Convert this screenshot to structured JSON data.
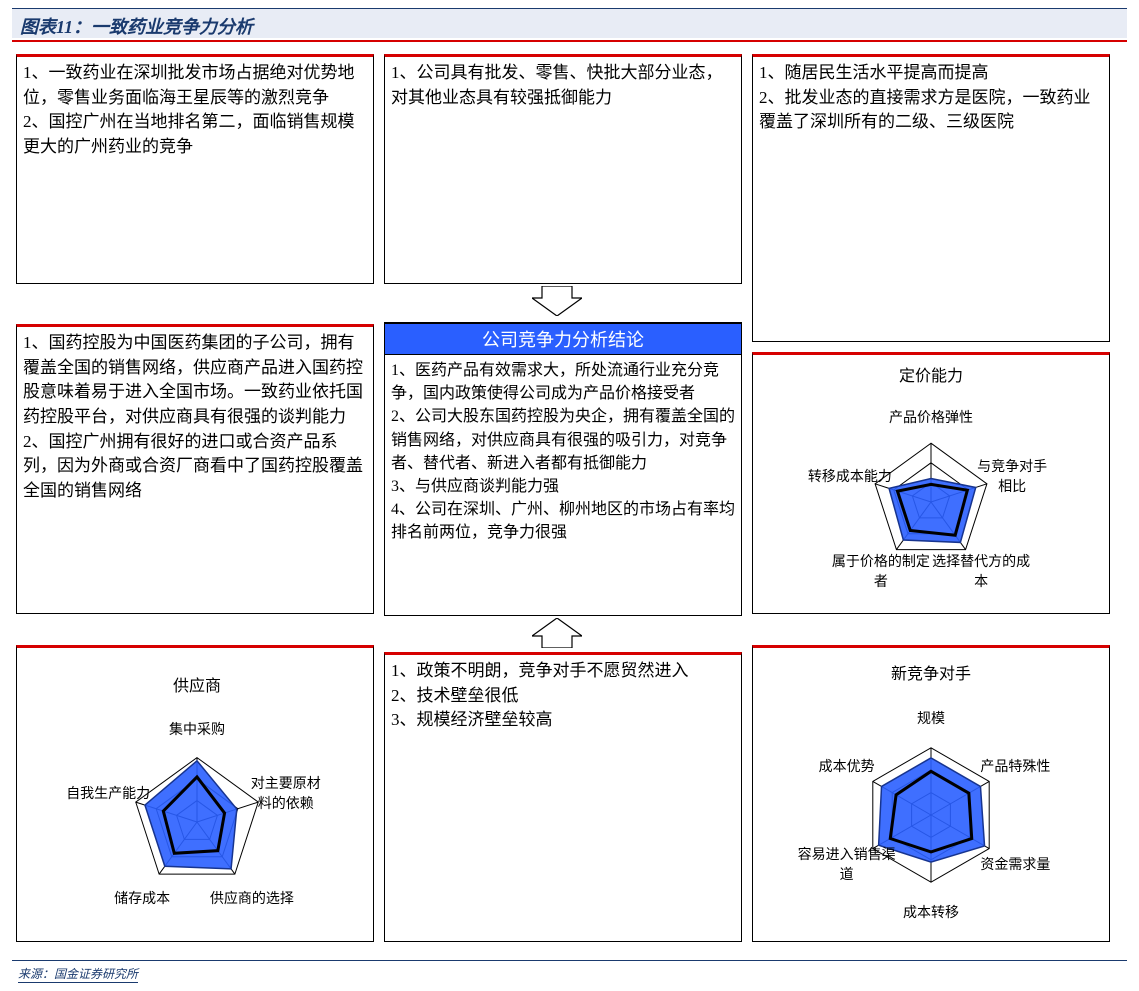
{
  "header": {
    "title": "图表11：一致药业竞争力分析"
  },
  "footer": {
    "source": "来源：国金证券研究所"
  },
  "center": {
    "title": "公司竞争力分析结论",
    "text": "1、医药产品有效需求大，所处流通行业充分竞争，国内政策使得公司成为产品价格接受者\n2、公司大股东国药控股为央企，拥有覆盖全国的销售网络，对供应商具有很强的吸引力，对竞争者、替代者、新进入者都有抵御能力\n3、与供应商谈判能力强\n4、公司在深圳、广州、柳州地区的市场占有率均排名前两位，竞争力很强"
  },
  "boxes": {
    "top_left": "1、一致药业在深圳批发市场占据绝对优势地位，零售业务面临海王星辰等的激烈竞争\n2、国控广州在当地排名第二，面临销售规模更大的广州药业的竞争",
    "top_mid": "1、公司具有批发、零售、快批大部分业态，对其他业态具有较强抵御能力",
    "top_right": "1、随居民生活水平提高而提高\n2、批发业态的直接需求方是医院，一致药业覆盖了深圳所有的二级、三级医院",
    "mid_left": "1、国药控股为中国医药集团的子公司，拥有覆盖全国的销售网络，供应商产品进入国药控股意味着易于进入全国市场。一致药业依托国药控股平台，对供应商具有很强的谈判能力\n2、国控广州拥有很好的进口或合资产品系列，因为外商或合资厂商看中了国药控股覆盖全国的销售网络",
    "bottom_mid": "1、政策不明朗，竞争对手不愿贸然进入\n2、技术壁垒很低\n3、规模经济壁垒较高"
  },
  "radars": {
    "supplier": {
      "title": "供应商",
      "labels": [
        "集中采购",
        "对主要原材料的依赖",
        "供应商的选择",
        "储存成本",
        "自我生产能力"
      ],
      "rings": 3,
      "axis_color": "#000000",
      "grid_color": "#000000",
      "series": [
        {
          "color": "#2a5fff",
          "opacity": 0.9,
          "stroke": "#17348f",
          "values": [
            0.95,
            0.65,
            0.9,
            0.85,
            0.85
          ]
        },
        {
          "color": "none",
          "opacity": 1.0,
          "stroke": "#000000",
          "stroke_width": 3,
          "values": [
            0.7,
            0.45,
            0.55,
            0.6,
            0.55
          ]
        }
      ]
    },
    "pricing": {
      "title": "定价能力",
      "labels": [
        "产品价格弹性",
        "与竞争对手相比",
        "选择替代方的成本",
        "属于价格的制定者",
        "转移成本能力"
      ],
      "rings": 3,
      "axis_color": "#000000",
      "grid_color": "#000000",
      "series": [
        {
          "color": "#2a5fff",
          "opacity": 0.9,
          "stroke": "#17348f",
          "values": [
            0.4,
            0.8,
            0.85,
            0.8,
            0.75
          ]
        },
        {
          "color": "none",
          "opacity": 1.0,
          "stroke": "#000000",
          "stroke_width": 3,
          "values": [
            0.3,
            0.65,
            0.7,
            0.6,
            0.6
          ]
        }
      ]
    },
    "competitor": {
      "title": "新竞争对手",
      "labels": [
        "规模",
        "产品特殊性",
        "资金需求量",
        "成本转移",
        "容易进入销售渠道",
        "成本优势"
      ],
      "rings": 3,
      "axis_color": "#000000",
      "grid_color": "#000000",
      "series": [
        {
          "color": "#2a5fff",
          "opacity": 0.9,
          "stroke": "#17348f",
          "values": [
            0.85,
            0.85,
            0.92,
            0.7,
            0.9,
            0.85
          ]
        },
        {
          "color": "none",
          "opacity": 1.0,
          "stroke": "#000000",
          "stroke_width": 3,
          "values": [
            0.65,
            0.65,
            0.7,
            0.55,
            0.7,
            0.6
          ]
        }
      ]
    }
  },
  "colors": {
    "header_bg": "#e8ecf5",
    "header_text": "#1a3a6e",
    "red": "#d60000",
    "blue_fill": "#2a5fff",
    "black": "#000000"
  }
}
